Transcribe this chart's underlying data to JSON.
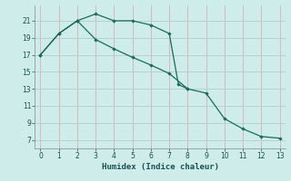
{
  "xlabel": "Humidex (Indice chaleur)",
  "bg_color": "#cdecea",
  "grid_color_v": "#d8b8b8",
  "grid_color_h": "#b8d0ce",
  "line_color": "#1a6b5a",
  "xlim": [
    -0.3,
    13.3
  ],
  "ylim": [
    6.0,
    22.8
  ],
  "yticks": [
    7,
    9,
    11,
    13,
    15,
    17,
    19,
    21
  ],
  "xticks": [
    0,
    1,
    2,
    3,
    4,
    5,
    6,
    7,
    8,
    9,
    10,
    11,
    12,
    13
  ],
  "line1_x": [
    0,
    1,
    2,
    3,
    4,
    5,
    6,
    7,
    7.5,
    8
  ],
  "line1_y": [
    17,
    19.5,
    21.0,
    21.8,
    21.0,
    21.0,
    20.5,
    19.5,
    13.5,
    13.0
  ],
  "line2_x": [
    0,
    1,
    2,
    3,
    4,
    5,
    6,
    7,
    8,
    9,
    10,
    11,
    12,
    13
  ],
  "line2_y": [
    17,
    19.5,
    21.0,
    18.8,
    17.7,
    16.7,
    15.8,
    14.8,
    13.0,
    12.5,
    9.5,
    8.3,
    7.4,
    7.2
  ]
}
